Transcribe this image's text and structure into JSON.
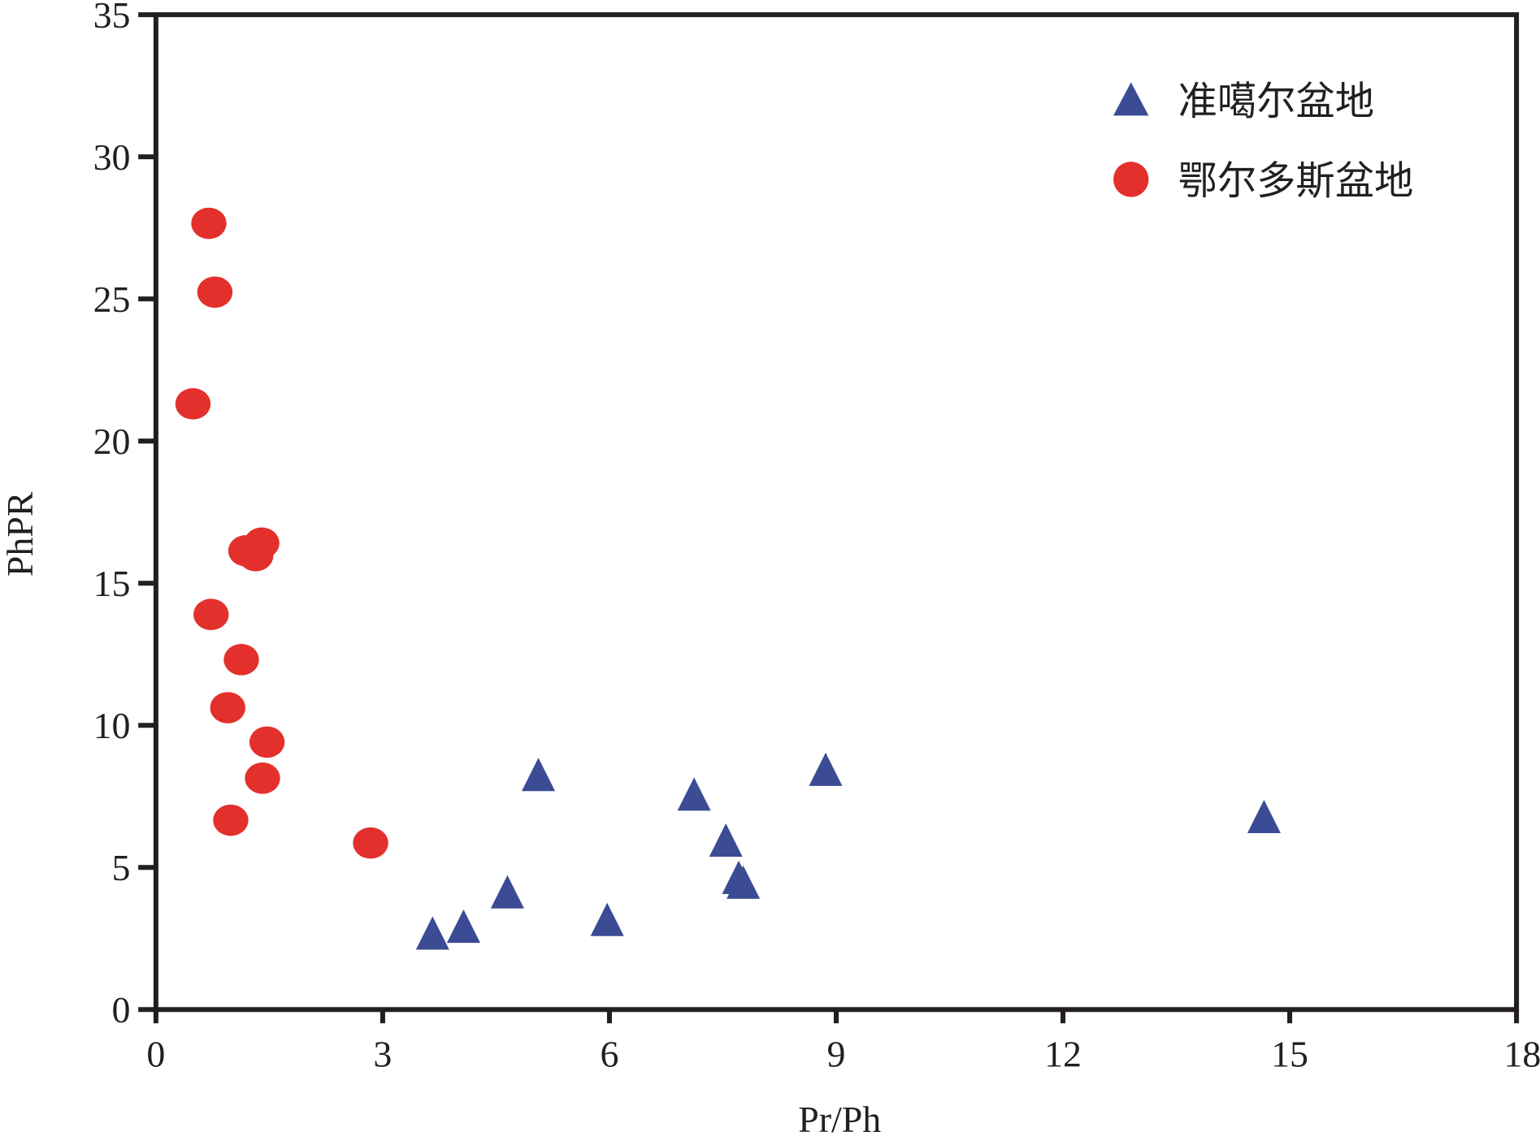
{
  "chart_data": {
    "type": "scatter",
    "title": "",
    "xlabel": "Pr/Ph",
    "ylabel": "PhPR",
    "xlim": [
      0,
      18
    ],
    "ylim": [
      0,
      35
    ],
    "xticks": [
      "0",
      "3",
      "6",
      "9",
      "12",
      "15",
      "18"
    ],
    "yticks": [
      "0",
      "5",
      "10",
      "15",
      "20",
      "25",
      "30",
      "35"
    ],
    "grid": false,
    "legend_position": "top-right",
    "series": [
      {
        "name": "准噶尔盆地",
        "marker": "triangle",
        "color": "#3b4c94",
        "x": [
          5.06,
          7.12,
          8.86,
          7.54,
          7.71,
          7.77,
          4.65,
          3.66,
          4.07,
          5.97,
          14.66
        ],
        "y": [
          8.1,
          7.41,
          8.28,
          5.79,
          4.48,
          4.31,
          3.97,
          2.52,
          2.76,
          3.0,
          6.62
        ]
      },
      {
        "name": "鄂尔多斯盆地",
        "marker": "circle",
        "color": "#e3302c",
        "x": [
          0.7,
          0.78,
          0.49,
          1.19,
          1.32,
          1.4,
          0.73,
          1.13,
          0.95,
          1.47,
          1.41,
          0.99,
          2.84
        ],
        "y": [
          27.66,
          25.24,
          21.31,
          16.14,
          15.97,
          16.41,
          13.9,
          12.31,
          10.62,
          9.41,
          8.14,
          6.66,
          5.86
        ]
      }
    ]
  }
}
